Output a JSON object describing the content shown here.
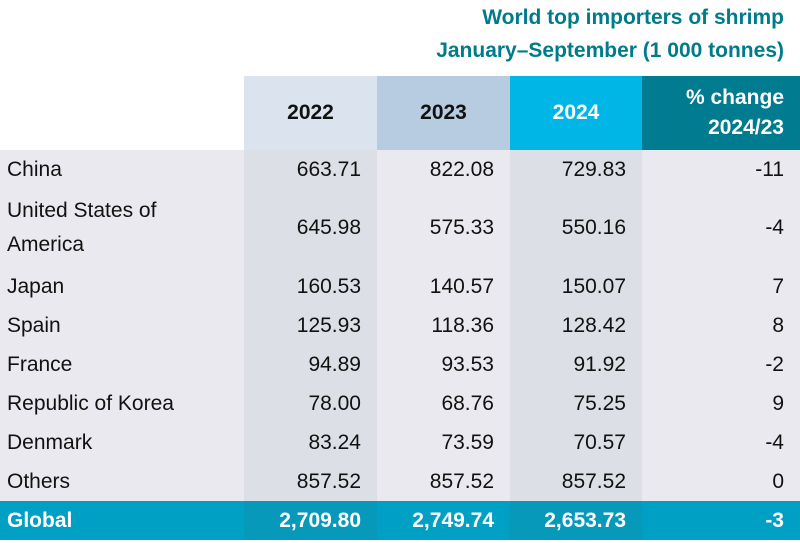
{
  "title": {
    "line1": "World top importers of shrimp",
    "line2": "January–September (1 000 tonnes)"
  },
  "headers": {
    "y2022": "2022",
    "y2023": "2023",
    "y2024": "2024",
    "pct_line1": "% change",
    "pct_line2": "2024/23"
  },
  "rows": [
    {
      "country": "China",
      "y2022": "663.71",
      "y2023": "822.08",
      "y2024": "729.83",
      "pct": "-11"
    },
    {
      "country": "United States of America",
      "y2022": "645.98",
      "y2023": "575.33",
      "y2024": "550.16",
      "pct": "-4"
    },
    {
      "country": "Japan",
      "y2022": "160.53",
      "y2023": "140.57",
      "y2024": "150.07",
      "pct": "7"
    },
    {
      "country": "Spain",
      "y2022": "125.93",
      "y2023": "118.36",
      "y2024": "128.42",
      "pct": "8"
    },
    {
      "country": "France",
      "y2022": "94.89",
      "y2023": "93.53",
      "y2024": "91.92",
      "pct": "-2"
    },
    {
      "country": "Republic of Korea",
      "y2022": "78.00",
      "y2023": "68.76",
      "y2024": "75.25",
      "pct": "9"
    },
    {
      "country": "Denmark",
      "y2022": "83.24",
      "y2023": "73.59",
      "y2024": "70.57",
      "pct": "-4"
    },
    {
      "country": "Others",
      "y2022": "857.52",
      "y2023": "857.52",
      "y2024": "857.52",
      "pct": "0"
    }
  ],
  "total": {
    "country": "Global",
    "y2022": "2,709.80",
    "y2023": "2,749.74",
    "y2024": "2,653.73",
    "pct": "-3"
  }
}
